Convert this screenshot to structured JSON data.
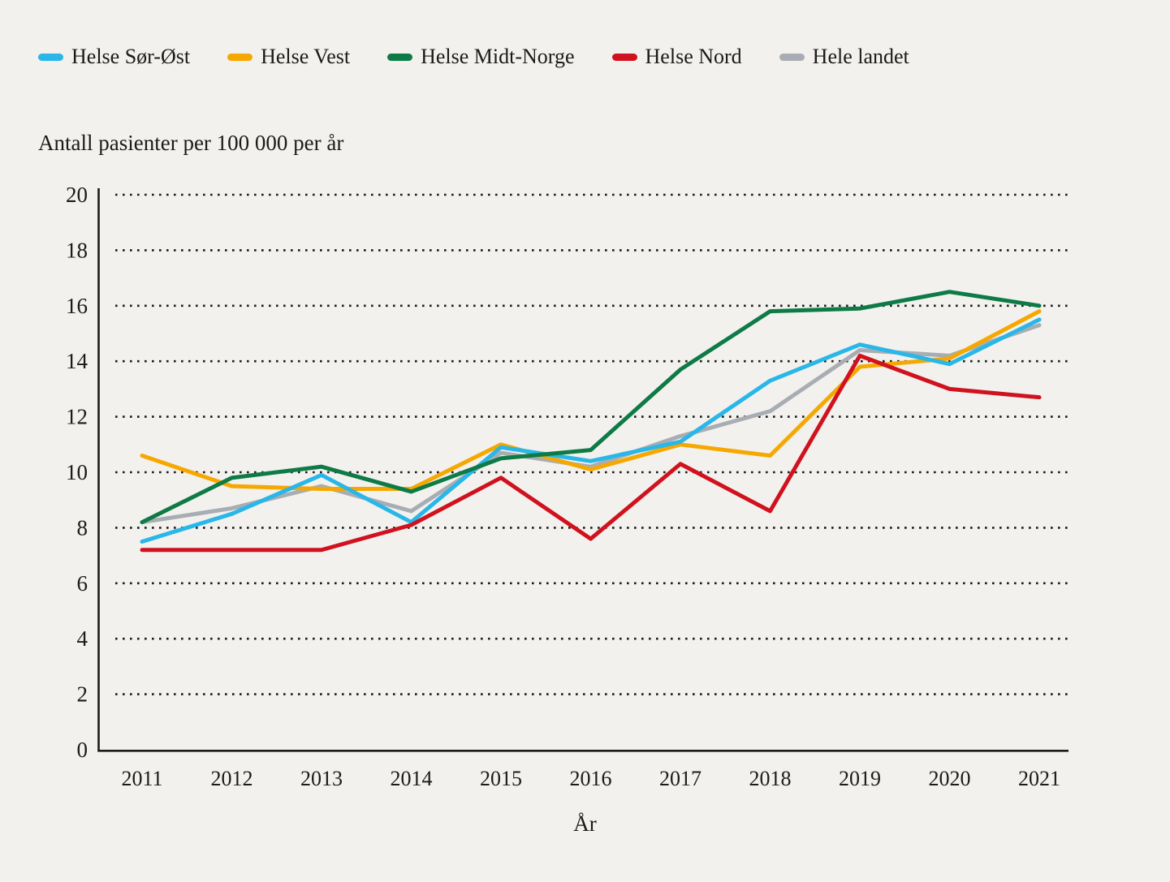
{
  "page": {
    "background_color": "#f2f1ee",
    "text_color": "#1b1b1b"
  },
  "chart_data": {
    "type": "line",
    "title": "Antall pasienter per 100 000 per år",
    "xlabel": "År",
    "ylabel": "Antall pasienter per 100 000 per år",
    "x": [
      2011,
      2012,
      2013,
      2014,
      2015,
      2016,
      2017,
      2018,
      2019,
      2020,
      2021
    ],
    "ylim": [
      0,
      20
    ],
    "yticks": [
      0,
      2,
      4,
      6,
      8,
      10,
      12,
      14,
      16,
      18,
      20
    ],
    "grid": "horizontal-dotted",
    "legend_position": "top-left-horizontal",
    "series": [
      {
        "name": "Helse Sør-Øst",
        "color": "#29b6e8",
        "values": [
          7.5,
          8.5,
          9.9,
          8.2,
          10.9,
          10.4,
          11.1,
          13.3,
          14.6,
          13.9,
          15.5
        ]
      },
      {
        "name": "Helse Vest",
        "color": "#f6a800",
        "values": [
          10.6,
          9.5,
          9.4,
          9.4,
          11.0,
          10.1,
          11.0,
          10.6,
          13.8,
          14.1,
          15.8
        ]
      },
      {
        "name": "Helse Midt-Norge",
        "color": "#0e7a46",
        "values": [
          8.2,
          9.8,
          10.2,
          9.3,
          10.5,
          10.8,
          13.7,
          15.8,
          15.9,
          16.5,
          16.0
        ]
      },
      {
        "name": "Helse Nord",
        "color": "#d0121e",
        "values": [
          7.2,
          7.2,
          7.2,
          8.1,
          9.8,
          7.6,
          10.3,
          8.6,
          14.2,
          13.0,
          12.7
        ]
      },
      {
        "name": "Hele landet",
        "color": "#a8adb3",
        "values": [
          8.2,
          8.7,
          9.5,
          8.6,
          10.7,
          10.2,
          11.3,
          12.2,
          14.4,
          14.2,
          15.3
        ]
      }
    ]
  }
}
